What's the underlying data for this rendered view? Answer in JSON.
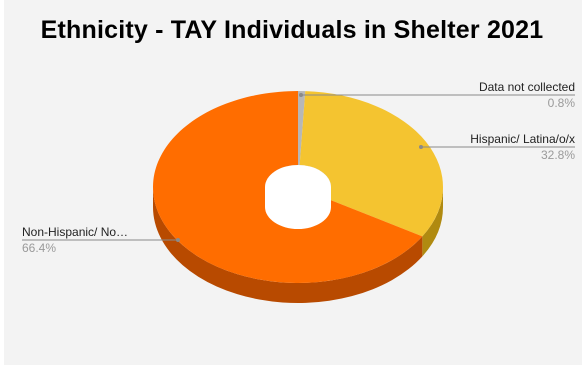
{
  "chart_data": {
    "type": "pie",
    "variant": "3d-donut",
    "title": "Ethnicity - TAY Individuals in Shelter 2021",
    "slices": [
      {
        "label": "Data not collected",
        "display_label": "Data not collected",
        "percent_text": "0.8%",
        "value": 0.8,
        "color": "#b7b7b7",
        "side_color": "#8a8a8a"
      },
      {
        "label": "Hispanic/ Latina/o/x",
        "display_label": "Hispanic/ Latina/o/x",
        "percent_text": "32.8%",
        "value": 32.8,
        "color": "#f4c430",
        "side_color": "#b08a10"
      },
      {
        "label": "Non-Hispanic/ No...",
        "display_label": "Non-Hispanic/ No…",
        "percent_text": "66.4%",
        "value": 66.4,
        "color": "#ff6d00",
        "side_color": "#b84a00"
      }
    ],
    "start_angle": "12 o'clock",
    "direction": "clockwise",
    "legend": "none (labels with leader lines)"
  }
}
